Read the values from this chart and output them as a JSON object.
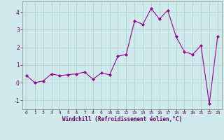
{
  "x": [
    0,
    1,
    2,
    3,
    4,
    5,
    6,
    7,
    8,
    9,
    10,
    11,
    12,
    13,
    14,
    15,
    16,
    17,
    18,
    19,
    20,
    21,
    22,
    23
  ],
  "y": [
    0.4,
    0.0,
    0.1,
    0.5,
    0.4,
    0.45,
    0.5,
    0.6,
    0.2,
    0.55,
    0.45,
    1.5,
    1.6,
    3.5,
    3.3,
    4.2,
    3.6,
    4.1,
    2.6,
    1.75,
    1.6,
    2.1,
    -1.2,
    2.6
  ],
  "line_color": "#990099",
  "marker": "D",
  "marker_size": 2,
  "bg_color": "#ceeaea",
  "grid_color": "#aacccc",
  "xlabel": "Windchill (Refroidissement éolien,°C)",
  "xlabel_color": "#660066",
  "tick_color": "#660066",
  "axis_color": "#888888",
  "ylim": [
    -1.5,
    4.6
  ],
  "xlim": [
    -0.5,
    23.5
  ],
  "yticks": [
    -1,
    0,
    1,
    2,
    3,
    4
  ],
  "xticks": [
    0,
    1,
    2,
    3,
    4,
    5,
    6,
    7,
    8,
    9,
    10,
    11,
    12,
    13,
    14,
    15,
    16,
    17,
    18,
    19,
    20,
    21,
    22,
    23
  ]
}
